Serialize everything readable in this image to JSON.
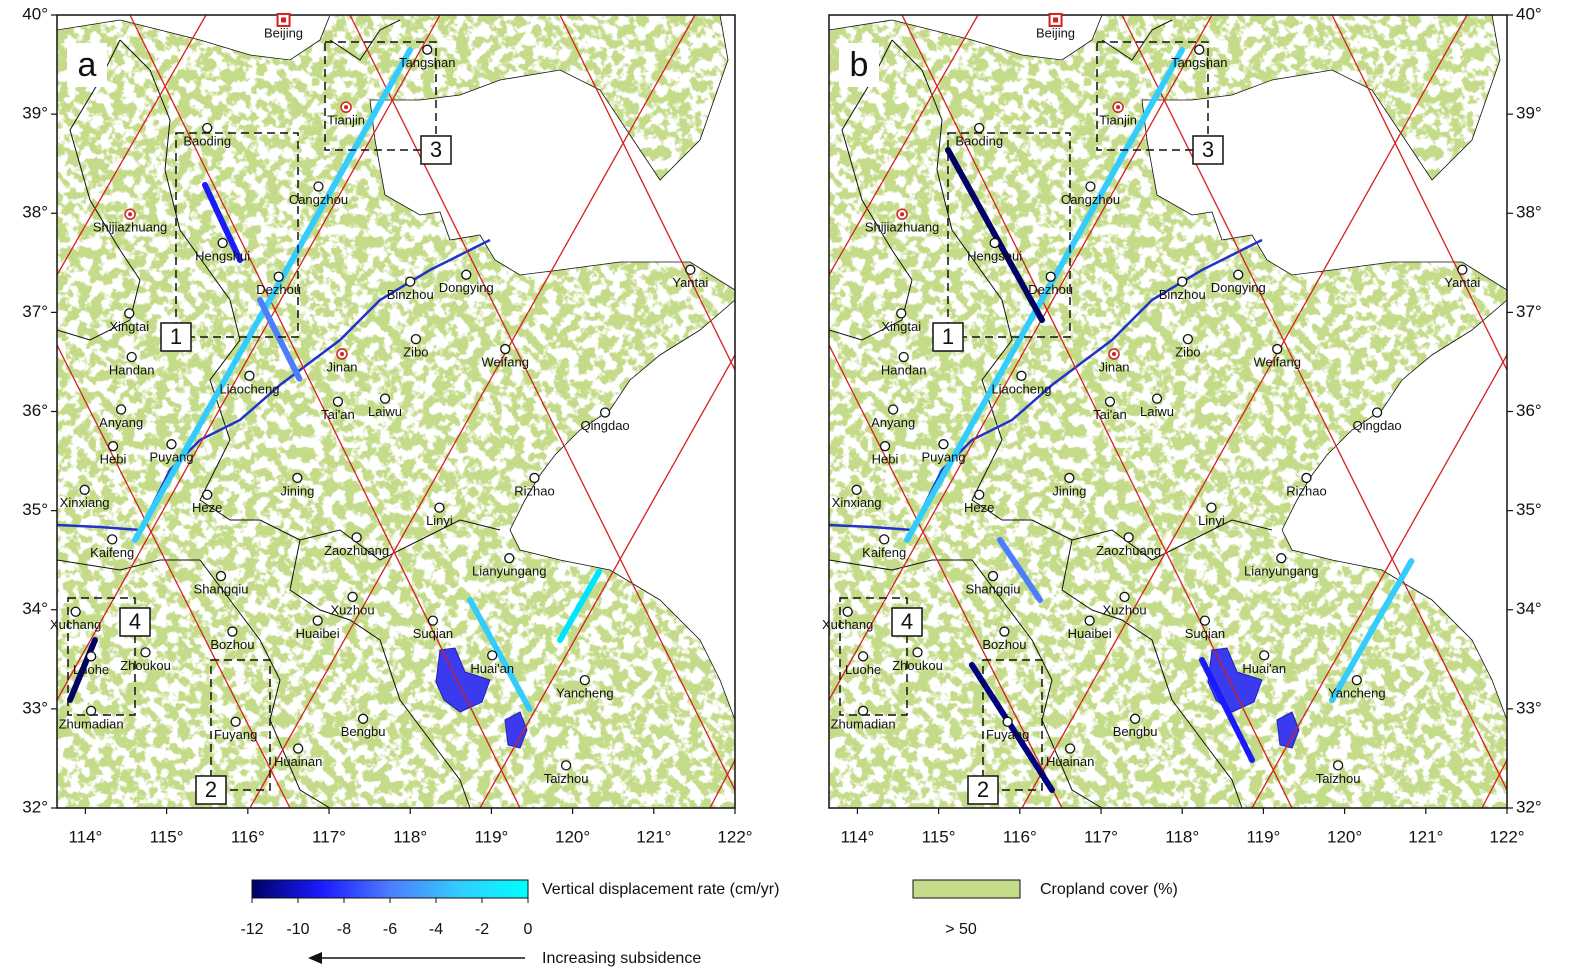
{
  "panels": [
    {
      "letter": "a"
    },
    {
      "letter": "b"
    }
  ],
  "map": {
    "lon_range": [
      113.65,
      122
    ],
    "lat_range": [
      32,
      40
    ],
    "lon_ticks": [
      {
        "value": 114,
        "label": "114°"
      },
      {
        "value": 115,
        "label": "115°"
      },
      {
        "value": 116,
        "label": "116°"
      },
      {
        "value": 117,
        "label": "117°"
      },
      {
        "value": 118,
        "label": "118°"
      },
      {
        "value": 119,
        "label": "119°"
      },
      {
        "value": 120,
        "label": "120°"
      },
      {
        "value": 121,
        "label": "121°"
      },
      {
        "value": 122,
        "label": "122°"
      }
    ],
    "lat_ticks": [
      {
        "value": 32,
        "label": "32°"
      },
      {
        "value": 33,
        "label": "33°"
      },
      {
        "value": 34,
        "label": "34°"
      },
      {
        "value": 35,
        "label": "35°"
      },
      {
        "value": 36,
        "label": "36°"
      },
      {
        "value": 37,
        "label": "37°"
      },
      {
        "value": 38,
        "label": "38°"
      },
      {
        "value": 39,
        "label": "39°"
      },
      {
        "value": 40,
        "label": "40°"
      }
    ]
  },
  "cities": [
    {
      "name": "Beijing",
      "lon": 116.44,
      "lat": 39.95,
      "marker": "capital"
    },
    {
      "name": "Tangshan",
      "lon": 118.21,
      "lat": 39.65,
      "marker": "city"
    },
    {
      "name": "Baoding",
      "lon": 115.5,
      "lat": 38.86,
      "marker": "city"
    },
    {
      "name": "Tianjin",
      "lon": 117.21,
      "lat": 39.07,
      "marker": "provincial"
    },
    {
      "name": "Shijiazhuang",
      "lon": 114.55,
      "lat": 37.99,
      "marker": "provincial"
    },
    {
      "name": "Cangzhou",
      "lon": 116.87,
      "lat": 38.27,
      "marker": "city"
    },
    {
      "name": "Hengshui",
      "lon": 115.69,
      "lat": 37.7,
      "marker": "city"
    },
    {
      "name": "Dezhou",
      "lon": 116.38,
      "lat": 37.36,
      "marker": "city"
    },
    {
      "name": "Binzhou",
      "lon": 118.0,
      "lat": 37.31,
      "marker": "city"
    },
    {
      "name": "Dongying",
      "lon": 118.69,
      "lat": 37.38,
      "marker": "city"
    },
    {
      "name": "Yantai",
      "lon": 121.45,
      "lat": 37.43,
      "marker": "city"
    },
    {
      "name": "Xingtai",
      "lon": 114.54,
      "lat": 36.99,
      "marker": "city"
    },
    {
      "name": "Handan",
      "lon": 114.57,
      "lat": 36.55,
      "marker": "city"
    },
    {
      "name": "Zibo",
      "lon": 118.07,
      "lat": 36.73,
      "marker": "city"
    },
    {
      "name": "Jinan",
      "lon": 117.16,
      "lat": 36.58,
      "marker": "provincial"
    },
    {
      "name": "Weifang",
      "lon": 119.17,
      "lat": 36.63,
      "marker": "city"
    },
    {
      "name": "Liaocheng",
      "lon": 116.02,
      "lat": 36.36,
      "marker": "city"
    },
    {
      "name": "Anyang",
      "lon": 114.44,
      "lat": 36.02,
      "marker": "city"
    },
    {
      "name": "Tai'an",
      "lon": 117.11,
      "lat": 36.1,
      "marker": "city"
    },
    {
      "name": "Laiwu",
      "lon": 117.69,
      "lat": 36.13,
      "marker": "city"
    },
    {
      "name": "Qingdao",
      "lon": 120.4,
      "lat": 35.99,
      "marker": "city"
    },
    {
      "name": "Hebi",
      "lon": 114.34,
      "lat": 35.65,
      "marker": "city"
    },
    {
      "name": "Puyang",
      "lon": 115.06,
      "lat": 35.67,
      "marker": "city"
    },
    {
      "name": "Jining",
      "lon": 116.61,
      "lat": 35.33,
      "marker": "city"
    },
    {
      "name": "Rizhao",
      "lon": 119.53,
      "lat": 35.33,
      "marker": "city"
    },
    {
      "name": "Xinxiang",
      "lon": 113.99,
      "lat": 35.21,
      "marker": "city"
    },
    {
      "name": "Heze",
      "lon": 115.5,
      "lat": 35.16,
      "marker": "city"
    },
    {
      "name": "Linyi",
      "lon": 118.36,
      "lat": 35.03,
      "marker": "city"
    },
    {
      "name": "Kaifeng",
      "lon": 114.33,
      "lat": 34.71,
      "marker": "city"
    },
    {
      "name": "Zaozhuang",
      "lon": 117.34,
      "lat": 34.73,
      "marker": "city"
    },
    {
      "name": "Lianyungang",
      "lon": 119.22,
      "lat": 34.52,
      "marker": "city"
    },
    {
      "name": "Shangqiu",
      "lon": 115.67,
      "lat": 34.34,
      "marker": "city"
    },
    {
      "name": "Xuzhou",
      "lon": 117.29,
      "lat": 34.13,
      "marker": "city"
    },
    {
      "name": "Xuchang",
      "lon": 113.88,
      "lat": 33.98,
      "marker": "city"
    },
    {
      "name": "Suqian",
      "lon": 118.28,
      "lat": 33.89,
      "marker": "city"
    },
    {
      "name": "Huaibei",
      "lon": 116.86,
      "lat": 33.89,
      "marker": "city"
    },
    {
      "name": "Bozhou",
      "lon": 115.81,
      "lat": 33.78,
      "marker": "city"
    },
    {
      "name": "Zhoukou",
      "lon": 114.74,
      "lat": 33.57,
      "marker": "city"
    },
    {
      "name": "Huai'an",
      "lon": 119.01,
      "lat": 33.54,
      "marker": "city"
    },
    {
      "name": "Luohe",
      "lon": 114.07,
      "lat": 33.53,
      "marker": "city"
    },
    {
      "name": "Yancheng",
      "lon": 120.15,
      "lat": 33.29,
      "marker": "city"
    },
    {
      "name": "Zhumadian",
      "lon": 114.07,
      "lat": 32.98,
      "marker": "city"
    },
    {
      "name": "Fuyang",
      "lon": 115.85,
      "lat": 32.87,
      "marker": "city"
    },
    {
      "name": "Bengbu",
      "lon": 117.42,
      "lat": 32.9,
      "marker": "city"
    },
    {
      "name": "Huainan",
      "lon": 116.62,
      "lat": 32.6,
      "marker": "city"
    },
    {
      "name": "Taizhou",
      "lon": 119.92,
      "lat": 32.43,
      "marker": "city"
    }
  ],
  "boxes": [
    "1",
    "2",
    "3",
    "4"
  ],
  "legend": {
    "colorbar": {
      "label": "Vertical displacement rate (cm/yr)",
      "range": [
        -12,
        0
      ],
      "ticks": [
        -12,
        -10,
        -8,
        -6,
        -4,
        -2,
        0
      ],
      "colors": [
        "#000066",
        "#1a1aff",
        "#4d7dff",
        "#33ccff",
        "#00ffff"
      ]
    },
    "arrow_label": "Increasing subsidence",
    "cropland": {
      "label": "Cropland cover (%)",
      "class": "> 50",
      "color": "#c4dc8a"
    }
  }
}
